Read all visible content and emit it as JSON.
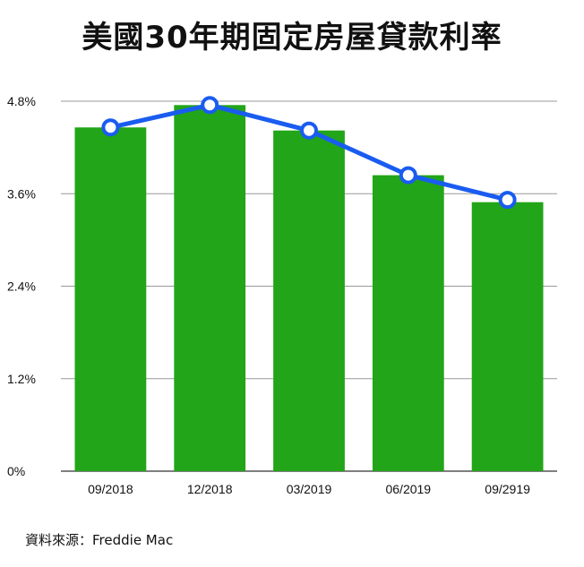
{
  "chart_data": {
    "type": "bar",
    "title": "美國30年期固定房屋貸款利率",
    "categories": [
      "09/2018",
      "12/2018",
      "03/2019",
      "06/2019",
      "09/2919"
    ],
    "series": [
      {
        "values": [
          4.46,
          4.75,
          4.42,
          3.84,
          3.49
        ],
        "type": "bar",
        "color": "#22a518"
      },
      {
        "values": [
          4.46,
          4.75,
          4.42,
          3.84,
          3.52
        ],
        "type": "line",
        "color": "#1a5cf0"
      }
    ],
    "yticks": [
      "0%",
      "1.2%",
      "2.4%",
      "3.6%",
      "4.8%"
    ],
    "ytick_values": [
      0,
      1.2,
      2.4,
      3.6,
      4.8
    ],
    "ylim": [
      0,
      4.8
    ],
    "grid": true,
    "legend": "none"
  },
  "source": "資料來源：Freddie Mac"
}
